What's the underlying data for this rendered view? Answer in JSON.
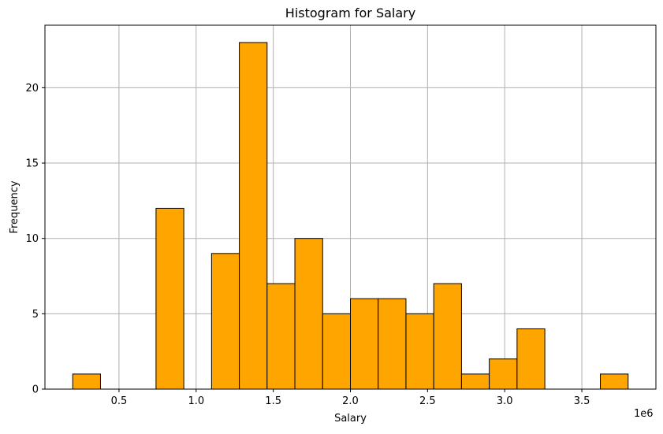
{
  "chart_data": {
    "type": "bar",
    "subtype": "histogram",
    "title": "Histogram for Salary",
    "xlabel": "Salary",
    "ylabel": "Frequency",
    "x_offset_label": "1e6",
    "xlim": [
      20000.0,
      3980000.0
    ],
    "ylim": [
      0,
      24.15
    ],
    "xticks": [
      500000,
      1000000,
      1500000,
      2000000,
      2500000,
      3000000,
      3500000
    ],
    "xtick_labels": [
      "0.5",
      "1.0",
      "1.5",
      "2.0",
      "2.5",
      "3.0",
      "3.5"
    ],
    "yticks": [
      0,
      5,
      10,
      15,
      20
    ],
    "ytick_labels": [
      "0",
      "5",
      "10",
      "15",
      "20"
    ],
    "bin_edges": [
      200000,
      380000,
      560000,
      740000,
      920000,
      1100000,
      1280000,
      1460000,
      1640000,
      1820000,
      2000000,
      2180000,
      2360000,
      2540000,
      2720000,
      2900000,
      3080000,
      3260000,
      3440000,
      3620000,
      3800000
    ],
    "values": [
      1,
      0,
      0,
      12,
      0,
      9,
      23,
      7,
      10,
      5,
      6,
      6,
      5,
      7,
      1,
      2,
      4,
      0,
      0,
      1
    ],
    "bar_color": "#ffa500",
    "edge_color": "#000000",
    "grid": true,
    "grid_color": "#b0b0b0"
  }
}
